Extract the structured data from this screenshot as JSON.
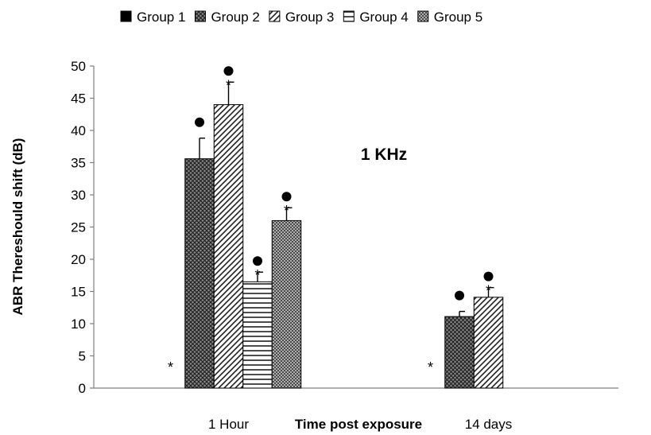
{
  "chart_data": {
    "type": "bar",
    "annotation": "1 KHz",
    "xlabel": "Time post exposure",
    "ylabel": "ABR Thereshould shift (dB)",
    "ylim": [
      0,
      50
    ],
    "yticks": [
      0,
      5,
      10,
      15,
      20,
      25,
      30,
      35,
      40,
      45,
      50
    ],
    "categories": [
      "1 Hour",
      "14 days"
    ],
    "legend_position": "top",
    "series": [
      {
        "name": "Group 1",
        "pattern": "solid",
        "values": [
          0,
          0
        ],
        "errors": [
          0,
          0
        ],
        "stars": [
          true,
          true
        ],
        "dots": [
          false,
          false
        ]
      },
      {
        "name": "Group 2",
        "pattern": "crosshatch",
        "values": [
          35.6,
          11.1
        ],
        "errors": [
          3.2,
          0.8
        ],
        "stars": [
          false,
          false
        ],
        "dots": [
          true,
          true
        ]
      },
      {
        "name": "Group 3",
        "pattern": "diagonal",
        "values": [
          44,
          14.1
        ],
        "errors": [
          3.5,
          1.5
        ],
        "stars": [
          true,
          true
        ],
        "dots": [
          true,
          true
        ]
      },
      {
        "name": "Group 4",
        "pattern": "horizontal",
        "values": [
          16.5,
          0
        ],
        "errors": [
          1.5,
          0
        ],
        "stars": [
          true,
          false
        ],
        "dots": [
          true,
          false
        ]
      },
      {
        "name": "Group 5",
        "pattern": "dense-dots",
        "values": [
          26,
          0
        ],
        "errors": [
          2,
          0
        ],
        "stars": [
          true,
          false
        ],
        "dots": [
          true,
          false
        ]
      }
    ],
    "marker_symbols": {
      "star": "*",
      "dot": "●"
    }
  }
}
